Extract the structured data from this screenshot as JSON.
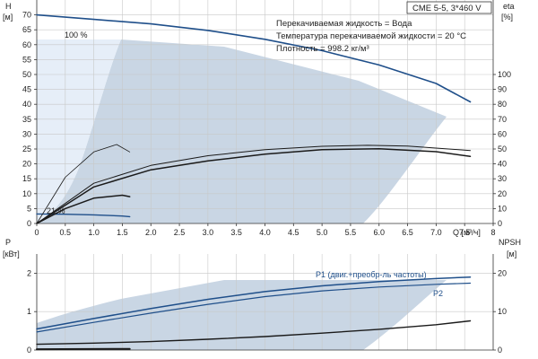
{
  "chart_data": [
    {
      "type": "line",
      "panel": "head-efficiency",
      "info_box": {
        "model": "CME 5-5, 3*460 V",
        "lines": [
          "Перекачиваемая жидкость = Вода",
          "Температура перекачиваемой жидкости = 20 °C",
          "Плотность = 998.2 кг/м³"
        ]
      },
      "ylabel_left": "H",
      "yunit_left": "[м]",
      "ylabel_right": "eta",
      "yunit_right": "[%]",
      "xlabel": "Q [м³/ч]",
      "xlim": [
        0,
        8
      ],
      "ylim_left": [
        0,
        75
      ],
      "ylim_right": [
        0,
        150
      ],
      "x_ticks": [
        "0",
        "0.5",
        "1.0",
        "1.5",
        "2.0",
        "2.5",
        "3.0",
        "3.5",
        "4.0",
        "4.5",
        "5.0",
        "5.5",
        "6.0",
        "6.5",
        "7.0",
        "7.5",
        "8"
      ],
      "y_ticks_left": [
        "0",
        "5",
        "10",
        "15",
        "20",
        "25",
        "30",
        "35",
        "40",
        "45",
        "50",
        "55",
        "60",
        "65",
        "70"
      ],
      "y_ticks_right": [
        "0",
        "10",
        "20",
        "30",
        "40",
        "50",
        "60",
        "70",
        "80",
        "90",
        "100"
      ],
      "grid": true,
      "annotations": [
        "100 %",
        "21 %"
      ],
      "series": [
        {
          "axis": "left",
          "x": [
            0,
            1,
            2,
            3,
            4,
            5,
            6,
            7,
            7.6
          ],
          "values": [
            70,
            68.5,
            67,
            64.8,
            61.8,
            58,
            53.2,
            47,
            40.8
          ]
        },
        {
          "axis": "left",
          "x": [
            0,
            0.5,
            1,
            1.5,
            1.63
          ],
          "values": [
            3.2,
            3.1,
            2.9,
            2.5,
            2.3
          ]
        },
        {
          "axis": "right",
          "x": [
            0,
            1,
            2,
            3,
            4,
            5,
            5.8,
            6.5,
            7.6
          ],
          "values": [
            0,
            27,
            39,
            45.5,
            49.5,
            51.8,
            52.5,
            52,
            49
          ]
        },
        {
          "axis": "right",
          "x": [
            0,
            1,
            2,
            3,
            4,
            5,
            6,
            7,
            7.6
          ],
          "values": [
            0,
            24.5,
            36,
            42,
            46.5,
            49.5,
            50.2,
            48.2,
            45
          ]
        },
        {
          "axis": "right",
          "x": [
            0,
            0.5,
            1,
            1.4,
            1.63
          ],
          "values": [
            0,
            31,
            48,
            53,
            48
          ]
        },
        {
          "axis": "right",
          "x": [
            0,
            0.5,
            1,
            1.5,
            1.63
          ],
          "values": [
            0,
            10,
            17,
            19,
            18
          ]
        }
      ]
    },
    {
      "type": "line",
      "panel": "power-npsh",
      "ylabel_left": "P",
      "yunit_left": "[кВт]",
      "ylabel_right": "NPSH",
      "yunit_right": "[м]",
      "xlim": [
        0,
        8
      ],
      "ylim_left": [
        0,
        2.5
      ],
      "ylim_right": [
        0,
        25
      ],
      "y_ticks_left": [
        "0",
        "1",
        "2"
      ],
      "y_ticks_right": [
        "0",
        "10",
        "20"
      ],
      "grid": true,
      "series": [
        {
          "name": "P1 (двиг.+преобр-ль частоты)",
          "axis": "left",
          "x": [
            0,
            1,
            2,
            3,
            4,
            5,
            6,
            7,
            7.6
          ],
          "values": [
            0.55,
            0.82,
            1.08,
            1.32,
            1.52,
            1.67,
            1.78,
            1.86,
            1.9
          ]
        },
        {
          "name": "P2",
          "axis": "left",
          "x": [
            0,
            1,
            2,
            3,
            4,
            5,
            6,
            7,
            7.6
          ],
          "values": [
            0.47,
            0.72,
            0.96,
            1.19,
            1.39,
            1.54,
            1.64,
            1.71,
            1.74
          ]
        },
        {
          "axis": "right",
          "x": [
            0,
            1,
            2,
            3,
            4,
            5,
            6,
            7,
            7.6
          ],
          "values": [
            1.5,
            1.8,
            2.2,
            2.8,
            3.5,
            4.4,
            5.4,
            6.6,
            7.6
          ]
        },
        {
          "axis": "left",
          "x": [
            0,
            1.63
          ],
          "values": [
            0.02,
            0.03
          ]
        }
      ]
    }
  ]
}
